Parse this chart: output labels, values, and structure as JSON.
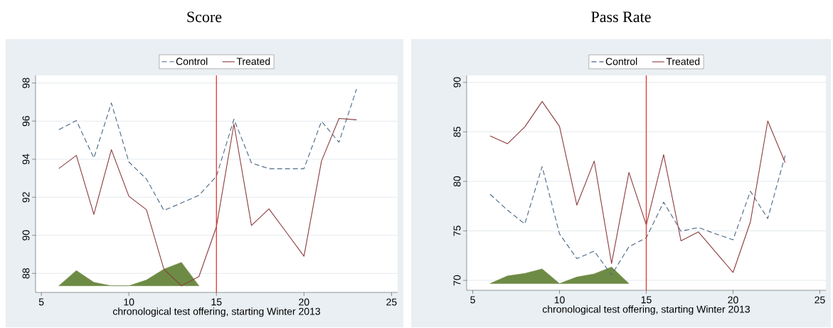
{
  "chart_data": [
    {
      "type": "line",
      "title": "Score",
      "xlabel": "chronological test offering, starting Winter 2013",
      "xlim": [
        4.67,
        25.35
      ],
      "xticks": [
        5,
        10,
        15,
        20,
        25
      ],
      "ylim": [
        87.0,
        98.4
      ],
      "yticks": [
        88,
        90,
        92,
        94,
        96,
        98
      ],
      "grid": "y",
      "legend": "top",
      "marker": "none",
      "x": [
        6,
        7,
        8,
        9,
        10,
        11,
        12,
        13,
        14,
        15,
        16,
        17,
        18,
        19,
        20,
        21,
        22,
        23
      ],
      "series": [
        {
          "name": "Control",
          "color": "#4a6785",
          "line_style": "dashed",
          "values": [
            95.55,
            96.03,
            94.06,
            96.95,
            93.85,
            92.96,
            91.31,
            91.7,
            92.1,
            93.1,
            96.1,
            93.8,
            93.5,
            93.5,
            93.5,
            95.99,
            94.89,
            97.68
          ]
        },
        {
          "name": "Treated",
          "color": "#8c3b3f",
          "line_style": "solid",
          "values": [
            93.51,
            94.2,
            91.1,
            94.5,
            92.05,
            91.35,
            88.22,
            87.35,
            87.83,
            90.45,
            95.85,
            90.52,
            91.39,
            90.15,
            88.9,
            93.9,
            96.14,
            96.07
          ]
        },
        {
          "type": "area",
          "color": "#6e8b45",
          "x": [
            6,
            7,
            8,
            9,
            10,
            11,
            12,
            13,
            14
          ],
          "values": [
            87.35,
            88.15,
            87.53,
            87.35,
            87.35,
            87.65,
            88.22,
            88.58,
            87.35
          ]
        }
      ],
      "ref_lines": [
        {
          "axis": "x",
          "value": 15,
          "color": "#d9392f"
        }
      ]
    },
    {
      "type": "line",
      "title": "Pass Rate",
      "xlabel": "chronological test offering, starting Winter 2013",
      "xlim": [
        4.65,
        25.35
      ],
      "xticks": [
        5,
        10,
        15,
        20,
        25
      ],
      "ylim": [
        69.0,
        90.7
      ],
      "yticks": [
        70,
        75,
        80,
        85,
        90
      ],
      "grid": "y",
      "legend": "top",
      "marker": "none",
      "x": [
        6,
        7,
        8,
        9,
        10,
        11,
        12,
        13,
        14,
        15,
        16,
        17,
        18,
        19,
        20,
        21,
        22,
        23
      ],
      "series": [
        {
          "name": "Control",
          "color": "#4a6785",
          "line_style": "dashed",
          "values": [
            78.7,
            77.1,
            75.7,
            81.5,
            74.7,
            72.2,
            72.96,
            70.55,
            73.4,
            74.3,
            77.9,
            74.97,
            75.34,
            74.7,
            74.1,
            79.0,
            76.25,
            82.6
          ]
        },
        {
          "name": "Treated",
          "color": "#8c3b3f",
          "line_style": "solid",
          "values": [
            84.6,
            83.8,
            85.5,
            88.07,
            85.55,
            77.6,
            82.05,
            71.7,
            80.9,
            75.6,
            82.7,
            74.0,
            74.9,
            72.85,
            70.8,
            75.9,
            86.1,
            81.9
          ]
        },
        {
          "type": "area",
          "color": "#6e8b45",
          "x": [
            6,
            7,
            8,
            9,
            10,
            11,
            12,
            13,
            14
          ],
          "values": [
            69.68,
            70.45,
            70.7,
            71.16,
            69.68,
            70.34,
            70.66,
            71.35,
            69.68
          ]
        }
      ],
      "ref_lines": [
        {
          "axis": "x",
          "value": 15,
          "color": "#d9392f"
        }
      ]
    }
  ]
}
